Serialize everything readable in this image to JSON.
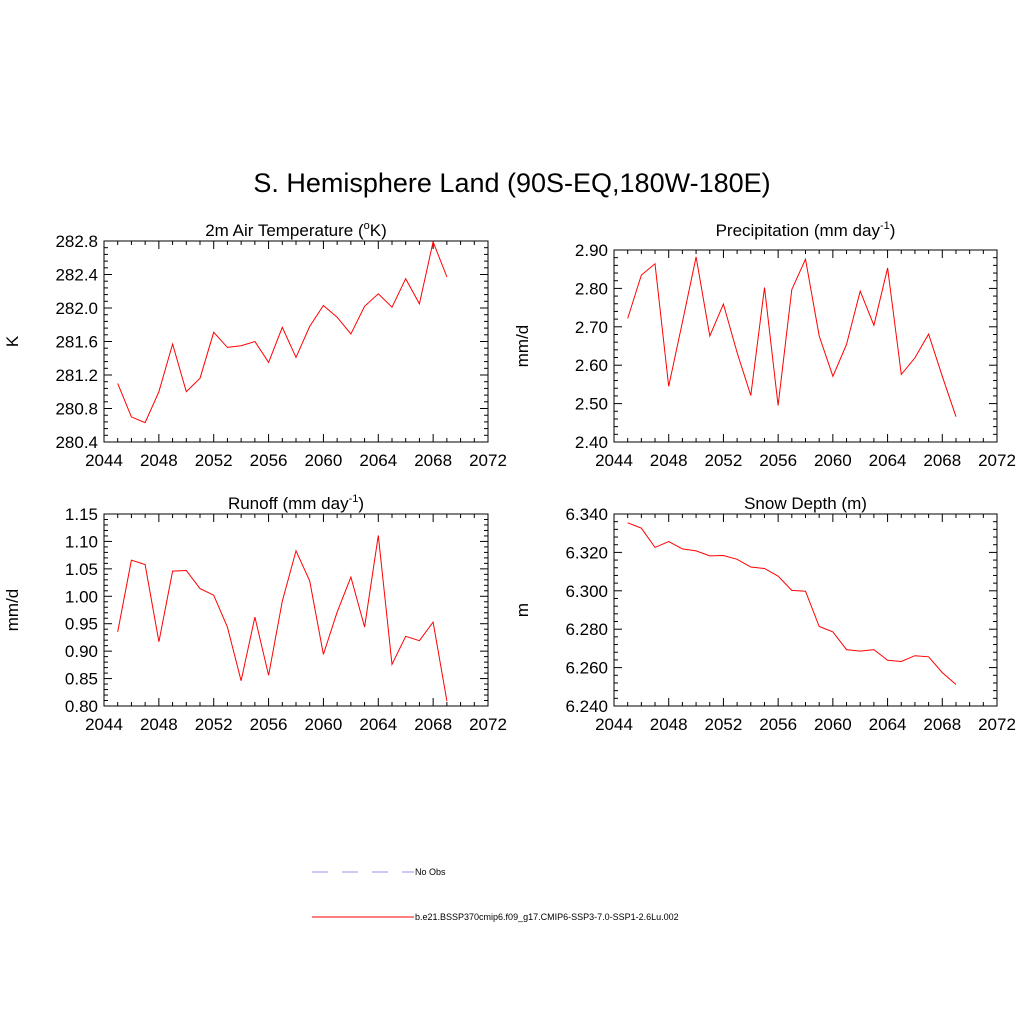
{
  "title": "S. Hemisphere Land (90S-EQ,180W-180E)",
  "chart_data": [
    {
      "type": "line",
      "title": "2m Air Temperature (",
      "title_sup": "o",
      "title_suffix": "K)",
      "ylabel": "K",
      "xlim": [
        2044,
        2072
      ],
      "ylim": [
        280.4,
        282.8
      ],
      "xticks": [
        2044,
        2048,
        2052,
        2056,
        2060,
        2064,
        2068,
        2072
      ],
      "yticks": [
        "280.4",
        "280.8",
        "281.2",
        "281.6",
        "282.0",
        "282.4",
        "282.8"
      ],
      "x": [
        2045,
        2046,
        2047,
        2048,
        2049,
        2050,
        2051,
        2052,
        2053,
        2054,
        2055,
        2056,
        2057,
        2058,
        2059,
        2060,
        2061,
        2062,
        2063,
        2064,
        2065,
        2066,
        2067,
        2068,
        2069
      ],
      "series": [
        {
          "color": "#ff0000",
          "values": [
            281.1,
            280.7,
            280.63,
            281.0,
            281.57,
            281.0,
            281.16,
            281.71,
            281.53,
            281.55,
            281.6,
            281.35,
            281.77,
            281.41,
            281.78,
            282.03,
            281.89,
            281.69,
            282.02,
            282.17,
            282.01,
            282.35,
            282.05,
            282.79,
            282.37
          ]
        }
      ]
    },
    {
      "type": "line",
      "title": "Precipitation (mm day",
      "title_sup": "-1",
      "title_suffix": ")",
      "ylabel": "mm/d",
      "xlim": [
        2044,
        2072
      ],
      "ylim": [
        2.4,
        2.9
      ],
      "xticks": [
        2044,
        2048,
        2052,
        2056,
        2060,
        2064,
        2068,
        2072
      ],
      "yticks": [
        "2.40",
        "2.50",
        "2.60",
        "2.70",
        "2.80",
        "2.90"
      ],
      "x": [
        2045,
        2046,
        2047,
        2048,
        2049,
        2050,
        2051,
        2052,
        2053,
        2054,
        2055,
        2056,
        2057,
        2058,
        2059,
        2060,
        2061,
        2062,
        2063,
        2064,
        2065,
        2066,
        2067,
        2068,
        2069
      ],
      "series": [
        {
          "color": "#ff0000",
          "values": [
            2.722,
            2.835,
            2.864,
            2.545,
            2.712,
            2.882,
            2.676,
            2.759,
            2.633,
            2.521,
            2.802,
            2.495,
            2.797,
            2.876,
            2.676,
            2.571,
            2.654,
            2.793,
            2.704,
            2.853,
            2.576,
            2.619,
            2.681,
            2.571,
            2.466
          ]
        }
      ]
    },
    {
      "type": "line",
      "title": "Runoff (mm day",
      "title_sup": "-1",
      "title_suffix": ")",
      "ylabel": "mm/d",
      "xlim": [
        2044,
        2072
      ],
      "ylim": [
        0.8,
        1.15
      ],
      "xticks": [
        2044,
        2048,
        2052,
        2056,
        2060,
        2064,
        2068,
        2072
      ],
      "yticks": [
        "0.80",
        "0.85",
        "0.90",
        "0.95",
        "1.00",
        "1.05",
        "1.10",
        "1.15"
      ],
      "x": [
        2045,
        2046,
        2047,
        2048,
        2049,
        2050,
        2051,
        2052,
        2053,
        2054,
        2055,
        2056,
        2057,
        2058,
        2059,
        2060,
        2061,
        2062,
        2063,
        2064,
        2065,
        2066,
        2067,
        2068,
        2069
      ],
      "series": [
        {
          "color": "#ff0000",
          "values": [
            0.935,
            1.066,
            1.058,
            0.917,
            1.046,
            1.047,
            1.014,
            1.002,
            0.944,
            0.846,
            0.962,
            0.856,
            0.991,
            1.083,
            1.028,
            0.894,
            0.971,
            1.035,
            0.944,
            1.111,
            0.876,
            0.927,
            0.919,
            0.953,
            0.809
          ]
        }
      ]
    },
    {
      "type": "line",
      "title": "Snow Depth (m)",
      "title_sup": "",
      "title_suffix": "",
      "ylabel": "m",
      "xlim": [
        2044,
        2072
      ],
      "ylim": [
        6.24,
        6.34
      ],
      "xticks": [
        2044,
        2048,
        2052,
        2056,
        2060,
        2064,
        2068,
        2072
      ],
      "yticks": [
        "6.240",
        "6.260",
        "6.280",
        "6.300",
        "6.320",
        "6.340"
      ],
      "x": [
        2045,
        2046,
        2047,
        2048,
        2049,
        2050,
        2051,
        2052,
        2053,
        2054,
        2055,
        2056,
        2057,
        2058,
        2059,
        2060,
        2061,
        2062,
        2063,
        2064,
        2065,
        2066,
        2067,
        2068,
        2069
      ],
      "series": [
        {
          "color": "#ff0000",
          "values": [
            6.3354,
            6.3326,
            6.3226,
            6.3256,
            6.3218,
            6.3208,
            6.3182,
            6.3184,
            6.3164,
            6.3124,
            6.3116,
            6.3076,
            6.3002,
            6.2998,
            6.2814,
            6.2786,
            6.2694,
            6.2686,
            6.2694,
            6.2638,
            6.2632,
            6.2662,
            6.2656,
            6.2574,
            6.2512
          ]
        }
      ]
    }
  ],
  "legend": [
    {
      "label": "No Obs",
      "color": "#aaaaee",
      "style": "dashed"
    },
    {
      "label": "b.e21.BSSP370cmip6.f09_g17.CMIP6-SSP3-7.0-SSP1-2.6Lu.002",
      "color": "#ff0000",
      "style": "solid"
    }
  ]
}
